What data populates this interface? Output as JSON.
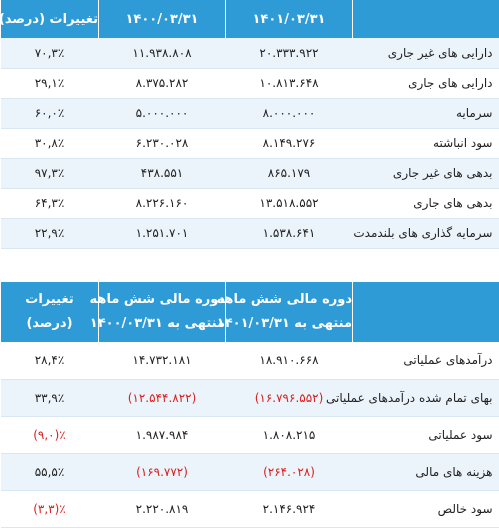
{
  "balance_table": {
    "headers": [
      "",
      "۱۴۰۱/۰۳/۳۱",
      "۱۴۰۰/۰۳/۳۱",
      "تغییرات (درصد)"
    ],
    "rows": [
      {
        "label": "دارایی های غیر جاری",
        "v1401": "۲۰.۳۳۳.۹۲۲",
        "v1400": "۱۱.۹۳۸.۸۰۸",
        "change": "۷۰,۳٪"
      },
      {
        "label": "دارایی های جاری",
        "v1401": "۱۰.۸۱۳.۶۴۸",
        "v1400": "۸.۳۷۵.۲۸۲",
        "change": "۲۹,۱٪"
      },
      {
        "label": "سرمایه",
        "v1401": "۸.۰۰۰.۰۰۰",
        "v1400": "۵.۰۰۰.۰۰۰",
        "change": "۶۰,۰٪"
      },
      {
        "label": "سود انباشته",
        "v1401": "۸.۱۴۹.۲۷۶",
        "v1400": "۶.۲۳۰.۰۲۸",
        "change": "۳۰,۸٪"
      },
      {
        "label": "بدهی های غیر جاری",
        "v1401": "۸۶۵.۱۷۹",
        "v1400": "۴۳۸.۵۵۱",
        "change": "۹۷,۳٪"
      },
      {
        "label": "بدهی های جاری",
        "v1401": "۱۳.۵۱۸.۵۵۲",
        "v1400": "۸.۲۲۶.۱۶۰",
        "change": "۶۴,۳٪"
      },
      {
        "label": "سرمایه گذاری های بلندمدت",
        "v1401": "۱.۵۳۸.۶۴۱",
        "v1400": "۱.۲۵۱.۷۰۱",
        "change": "۲۲,۹٪"
      }
    ]
  },
  "income_table": {
    "headers": [
      {
        "line1": "",
        "line2": ""
      },
      {
        "line1": "دوره مالی شش ماهه",
        "line2": "منتهی به ۱۴۰۱/۰۳/۳۱"
      },
      {
        "line1": "دوره مالی شش ماهه",
        "line2": "منتهی به ۱۴۰۰/۰۳/۳۱"
      },
      {
        "line1": "تغییرات",
        "line2": "(درصد)"
      }
    ],
    "rows": [
      {
        "label": "درآمدهای عملیاتی",
        "v1401": "۱۸.۹۱۰.۶۶۸",
        "v1400": "۱۴.۷۳۲.۱۸۱",
        "change": "۲۸,۴٪",
        "neg1401": false,
        "neg1400": false,
        "negChange": false
      },
      {
        "label": "بهای تمام شده درآمدهای عملیاتی",
        "v1401": "(۱۶.۷۹۶.۵۵۲)",
        "v1400": "(۱۲.۵۴۴.۸۲۲)",
        "change": "۳۳,۹٪",
        "neg1401": true,
        "neg1400": true,
        "negChange": false
      },
      {
        "label": "سود عملیاتی",
        "v1401": "۱.۸۰۸.۲۱۵",
        "v1400": "۱.۹۸۷.۹۸۴",
        "change": "(۹,۰)٪",
        "neg1401": false,
        "neg1400": false,
        "negChange": true
      },
      {
        "label": "هزینه های مالی",
        "v1401": "(۲۶۴.۰۲۸)",
        "v1400": "(۱۶۹.۷۷۲)",
        "change": "۵۵,۵٪",
        "neg1401": true,
        "neg1400": true,
        "negChange": false
      },
      {
        "label": "سود خالص",
        "v1401": "۲.۱۴۶.۹۲۴",
        "v1400": "۲.۲۲۰.۸۱۹",
        "change": "(۳,۳)٪",
        "neg1401": false,
        "neg1400": false,
        "negChange": true
      }
    ]
  },
  "colors": {
    "header_bg": "#2e9ad6",
    "stripe": "#ecf4fb",
    "negative": "#d81f1f"
  }
}
